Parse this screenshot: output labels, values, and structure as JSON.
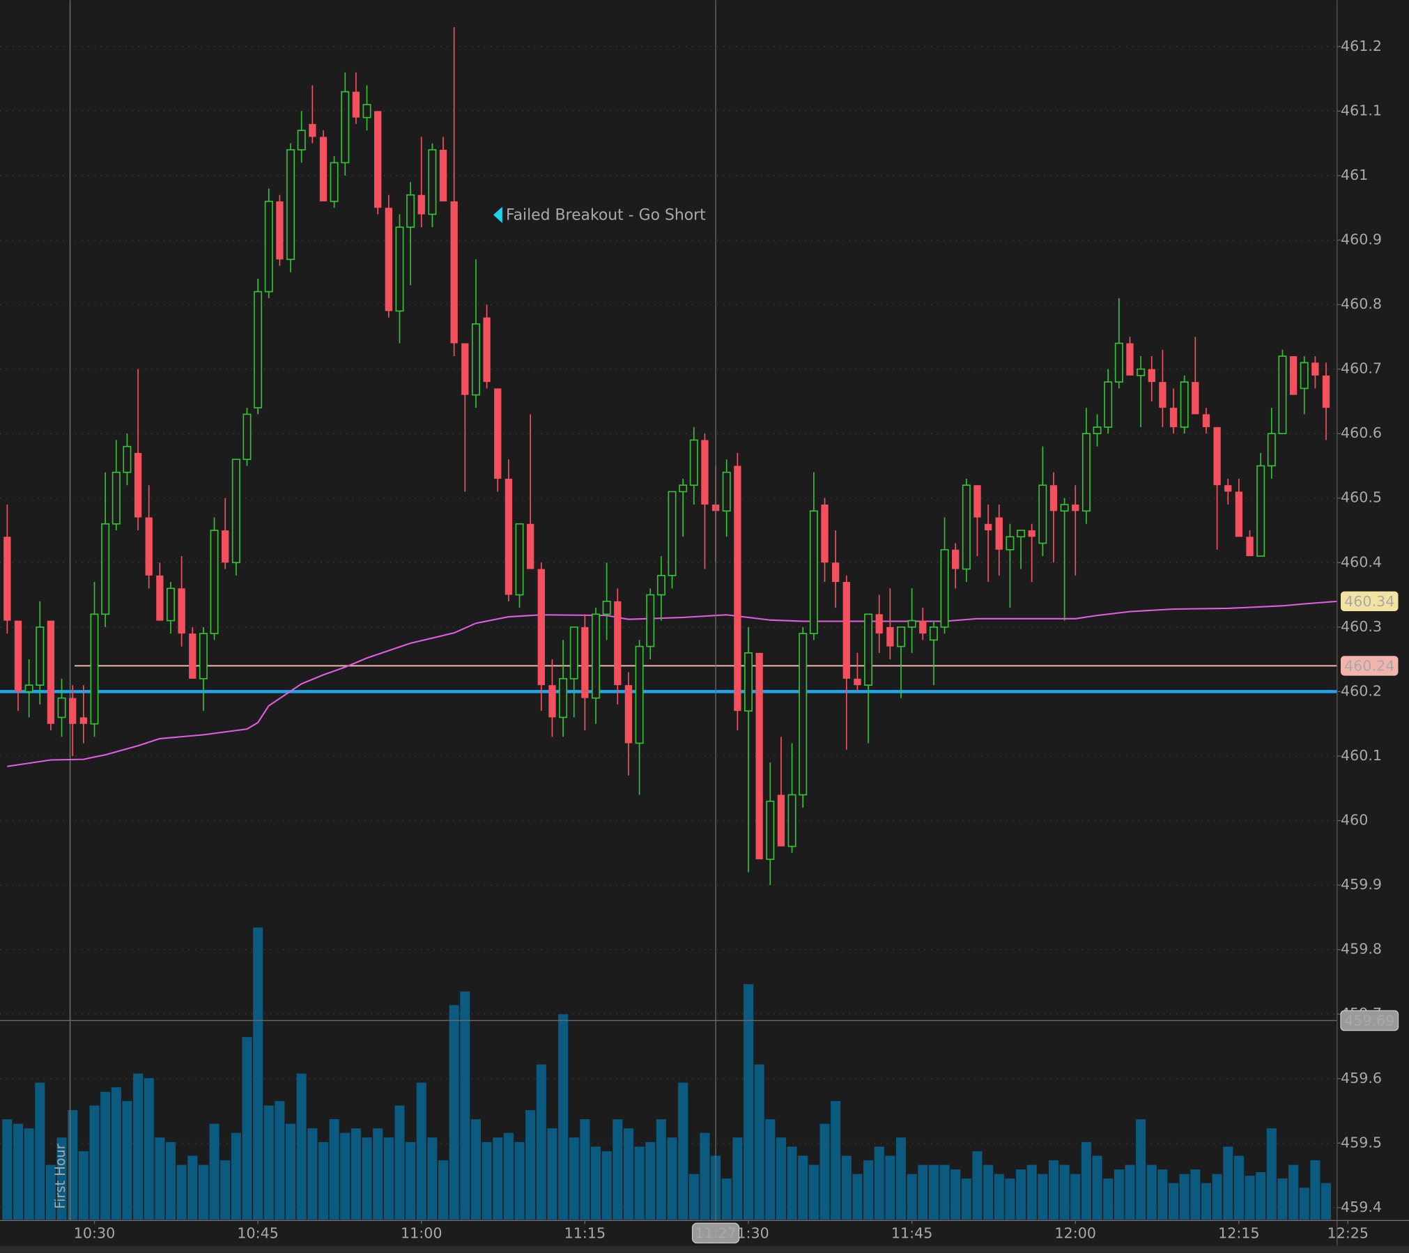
{
  "chart_data": {
    "type": "candlestick",
    "x": [
      "10:22",
      "10:23",
      "10:24",
      "10:25",
      "10:26",
      "10:27",
      "10:28",
      "10:29",
      "10:30",
      "10:31",
      "10:32",
      "10:33",
      "10:34",
      "10:35",
      "10:36",
      "10:37",
      "10:38",
      "10:39",
      "10:40",
      "10:41",
      "10:42",
      "10:43",
      "10:44",
      "10:45",
      "10:46",
      "10:47",
      "10:48",
      "10:49",
      "10:50",
      "10:51",
      "10:52",
      "10:53",
      "10:54",
      "10:55",
      "10:56",
      "10:57",
      "10:58",
      "10:59",
      "11:00",
      "11:01",
      "11:02",
      "11:03",
      "11:04",
      "11:05",
      "11:06",
      "11:07",
      "11:08",
      "11:09",
      "11:10",
      "11:11",
      "11:12",
      "11:13",
      "11:14",
      "11:15",
      "11:16",
      "11:17",
      "11:18",
      "11:19",
      "11:20",
      "11:21",
      "11:22",
      "11:23",
      "11:24",
      "11:25",
      "11:26",
      "11:27",
      "11:28",
      "11:29",
      "11:30",
      "11:31",
      "11:32",
      "11:33",
      "11:34",
      "11:35",
      "11:36",
      "11:37",
      "11:38",
      "11:39",
      "11:40",
      "11:41",
      "11:42",
      "11:43",
      "11:44",
      "11:45",
      "11:46",
      "11:47",
      "11:48",
      "11:49",
      "11:50",
      "11:51",
      "11:52",
      "11:53",
      "11:54",
      "11:55",
      "11:56",
      "11:57",
      "11:58",
      "11:59",
      "12:00",
      "12:01",
      "12:02",
      "12:03",
      "12:04",
      "12:05",
      "12:06",
      "12:07",
      "12:08",
      "12:09",
      "12:10",
      "12:11",
      "12:12",
      "12:13",
      "12:14",
      "12:15",
      "12:16",
      "12:17",
      "12:18",
      "12:19",
      "12:20",
      "12:21",
      "12:22",
      "12:23"
    ],
    "open": [
      460.44,
      460.31,
      460.2,
      460.21,
      460.31,
      460.16,
      460.19,
      460.16,
      460.15,
      460.32,
      460.46,
      460.54,
      460.57,
      460.47,
      460.38,
      460.31,
      460.36,
      460.29,
      460.22,
      460.29,
      460.45,
      460.4,
      460.56,
      460.64,
      460.82,
      460.96,
      460.87,
      461.04,
      461.08,
      461.06,
      460.96,
      461.02,
      461.13,
      461.09,
      461.1,
      460.95,
      460.79,
      460.92,
      460.97,
      460.94,
      461.04,
      460.96,
      460.74,
      460.66,
      460.78,
      460.67,
      460.53,
      460.35,
      460.46,
      460.39,
      460.21,
      460.16,
      460.22,
      460.3,
      460.19,
      460.32,
      460.34,
      460.21,
      460.12,
      460.27,
      460.35,
      460.38,
      460.51,
      460.52,
      460.59,
      460.49,
      460.48,
      460.55,
      460.17,
      460.26,
      459.94,
      460.04,
      459.96,
      460.04,
      460.29,
      460.49,
      460.4,
      460.37,
      460.22,
      460.21,
      460.32,
      460.3,
      460.27,
      460.3,
      460.31,
      460.28,
      460.3,
      460.42,
      460.39,
      460.52,
      460.46,
      460.47,
      460.42,
      460.44,
      460.45,
      460.43,
      460.52,
      460.48,
      460.49,
      460.48,
      460.6,
      460.61,
      460.68,
      460.74,
      460.69,
      460.7,
      460.68,
      460.64,
      460.61,
      460.68,
      460.63,
      460.61,
      460.52,
      460.51,
      460.44,
      460.41,
      460.55,
      460.6,
      460.72,
      460.67,
      460.71,
      460.69
    ],
    "high": [
      460.49,
      460.31,
      460.25,
      460.34,
      460.31,
      460.22,
      460.21,
      460.21,
      460.37,
      460.54,
      460.59,
      460.6,
      460.7,
      460.52,
      460.4,
      460.37,
      460.41,
      460.3,
      460.3,
      460.47,
      460.5,
      460.56,
      460.64,
      460.84,
      460.98,
      460.97,
      461.05,
      461.1,
      461.14,
      461.07,
      461.03,
      461.16,
      461.16,
      461.14,
      461.1,
      460.97,
      460.94,
      460.99,
      461.06,
      461.05,
      461.06,
      461.23,
      460.74,
      460.87,
      460.8,
      460.67,
      460.56,
      460.46,
      460.63,
      460.4,
      460.25,
      460.28,
      460.3,
      460.32,
      460.33,
      460.4,
      460.36,
      460.23,
      460.28,
      460.36,
      460.41,
      460.51,
      460.53,
      460.61,
      460.6,
      460.55,
      460.56,
      460.57,
      460.3,
      460.26,
      460.09,
      460.13,
      460.12,
      460.3,
      460.54,
      460.5,
      460.45,
      460.38,
      460.26,
      460.32,
      460.35,
      460.36,
      460.3,
      460.36,
      460.33,
      460.31,
      460.47,
      460.43,
      460.53,
      460.52,
      460.49,
      460.49,
      460.46,
      460.45,
      460.46,
      460.58,
      460.54,
      460.5,
      460.52,
      460.64,
      460.63,
      460.7,
      460.81,
      460.75,
      460.72,
      460.72,
      460.73,
      460.67,
      460.69,
      460.75,
      460.64,
      460.61,
      460.53,
      460.53,
      460.45,
      460.57,
      460.64,
      460.73,
      460.72,
      460.72,
      460.72,
      460.71
    ],
    "low": [
      460.29,
      460.17,
      460.16,
      460.18,
      460.14,
      460.13,
      460.1,
      460.12,
      460.13,
      460.3,
      460.45,
      460.52,
      460.45,
      460.36,
      460.31,
      460.29,
      460.27,
      460.22,
      460.17,
      460.28,
      460.39,
      460.38,
      460.55,
      460.63,
      460.81,
      460.86,
      460.85,
      461.02,
      461.05,
      460.96,
      460.95,
      461.0,
      461.08,
      461.07,
      460.94,
      460.78,
      460.74,
      460.83,
      460.92,
      460.92,
      460.96,
      460.72,
      460.51,
      460.64,
      460.67,
      460.51,
      460.34,
      460.33,
      460.39,
      460.17,
      460.13,
      460.13,
      460.16,
      460.14,
      460.15,
      460.28,
      460.18,
      460.07,
      460.04,
      460.25,
      460.31,
      460.36,
      460.44,
      460.49,
      460.39,
      460.4,
      460.44,
      460.14,
      459.92,
      459.94,
      459.9,
      459.97,
      459.95,
      460.02,
      460.28,
      460.37,
      460.33,
      460.11,
      460.2,
      460.12,
      460.26,
      460.25,
      460.19,
      460.26,
      460.28,
      460.21,
      460.29,
      460.36,
      460.37,
      460.41,
      460.37,
      460.38,
      460.33,
      460.39,
      460.37,
      460.41,
      460.4,
      460.31,
      460.38,
      460.46,
      460.58,
      460.6,
      460.67,
      460.69,
      460.61,
      460.65,
      460.61,
      460.6,
      460.6,
      460.63,
      460.6,
      460.42,
      460.49,
      460.44,
      460.41,
      460.41,
      460.53,
      460.6,
      460.66,
      460.63,
      460.67,
      460.59
    ],
    "close": [
      460.31,
      460.2,
      460.21,
      460.3,
      460.15,
      460.19,
      460.15,
      460.15,
      460.32,
      460.46,
      460.54,
      460.58,
      460.47,
      460.38,
      460.31,
      460.36,
      460.29,
      460.22,
      460.29,
      460.45,
      460.4,
      460.56,
      460.63,
      460.82,
      460.96,
      460.87,
      461.04,
      461.07,
      461.06,
      460.96,
      461.02,
      461.13,
      461.09,
      461.11,
      460.95,
      460.79,
      460.92,
      460.97,
      460.94,
      461.04,
      460.96,
      460.74,
      460.66,
      460.77,
      460.68,
      460.53,
      460.35,
      460.46,
      460.39,
      460.21,
      460.16,
      460.22,
      460.3,
      460.19,
      460.32,
      460.34,
      460.21,
      460.12,
      460.27,
      460.35,
      460.38,
      460.51,
      460.52,
      460.59,
      460.49,
      460.48,
      460.54,
      460.17,
      460.26,
      459.94,
      460.03,
      459.96,
      460.04,
      460.29,
      460.48,
      460.4,
      460.37,
      460.22,
      460.21,
      460.32,
      460.29,
      460.27,
      460.3,
      460.31,
      460.29,
      460.3,
      460.42,
      460.39,
      460.52,
      460.47,
      460.45,
      460.42,
      460.44,
      460.45,
      460.44,
      460.52,
      460.48,
      460.49,
      460.48,
      460.6,
      460.61,
      460.68,
      460.74,
      460.69,
      460.7,
      460.68,
      460.64,
      460.61,
      460.68,
      460.63,
      460.61,
      460.52,
      460.51,
      460.44,
      460.41,
      460.55,
      460.6,
      460.72,
      460.66,
      460.71,
      460.69,
      460.64
    ],
    "up_color": "#33c233",
    "down_color": "#f4505e",
    "volume": {
      "color": "#0b5a80",
      "values": [
        110,
        105,
        100,
        150,
        60,
        90,
        120,
        75,
        125,
        140,
        145,
        130,
        160,
        155,
        90,
        85,
        60,
        70,
        60,
        105,
        65,
        95,
        200,
        320,
        125,
        130,
        105,
        160,
        100,
        85,
        110,
        95,
        100,
        90,
        100,
        90,
        125,
        85,
        150,
        90,
        65,
        235,
        250,
        110,
        85,
        90,
        95,
        85,
        120,
        170,
        100,
        225,
        90,
        110,
        80,
        75,
        110,
        100,
        80,
        85,
        110,
        90,
        150,
        50,
        95,
        70,
        45,
        90,
        258,
        170,
        110,
        90,
        80,
        70,
        60,
        105,
        130,
        70,
        50,
        65,
        80,
        70,
        90,
        50,
        60,
        60,
        60,
        55,
        45,
        75,
        60,
        50,
        45,
        55,
        60,
        50,
        65,
        60,
        50,
        85,
        70,
        45,
        55,
        60,
        110,
        60,
        55,
        40,
        50,
        55,
        40,
        50,
        80,
        70,
        48,
        52,
        100,
        45,
        60,
        35,
        65,
        40
      ]
    },
    "vwap": {
      "color": "#e35ee3",
      "x": [
        "10:22",
        "10:26",
        "10:29",
        "10:31",
        "10:34",
        "10:36",
        "10:40",
        "10:44",
        "10:45",
        "10:46",
        "10:49",
        "10:51",
        "10:53",
        "10:55",
        "10:59",
        "11:03",
        "11:05",
        "11:08",
        "11:11",
        "11:17",
        "11:19",
        "11:24",
        "11:28",
        "11:32",
        "11:35",
        "11:48",
        "11:51",
        "12:00",
        "12:02",
        "12:05",
        "12:09",
        "12:14",
        "12:19",
        "12:21",
        "12:24"
      ],
      "values": [
        460.084,
        460.094,
        460.095,
        460.102,
        460.116,
        460.127,
        460.133,
        460.142,
        460.152,
        460.178,
        460.212,
        460.226,
        460.238,
        460.252,
        460.275,
        460.291,
        460.306,
        460.316,
        460.319,
        460.318,
        460.312,
        460.315,
        460.319,
        460.311,
        460.309,
        460.309,
        460.313,
        460.313,
        460.318,
        460.324,
        460.328,
        460.329,
        460.333,
        460.336,
        460.34
      ]
    },
    "levels": [
      {
        "value": 460.2,
        "color": "#1ea7ee"
      },
      {
        "value": 460.24,
        "color": "#f2b5ac",
        "tag": true
      }
    ],
    "crosshair": {
      "x": "11:27",
      "y": 459.69
    },
    "annotation": "Failed Breakout - Go Short",
    "marker_label": "First Hour",
    "xlim": [
      "10:21",
      "12:25"
    ],
    "xticks": [
      "10:30",
      "10:45",
      "11:00",
      "11:15",
      "11:30",
      "11:45",
      "12:00",
      "12:15",
      "12:25"
    ],
    "ylim": [
      459.38,
      461.272
    ],
    "yticks": [
      459.4,
      459.5,
      459.6,
      459.7,
      459.8,
      459.9,
      460,
      460.1,
      460.2,
      460.3,
      460.4,
      460.5,
      460.6,
      460.7,
      460.8,
      460.9,
      461,
      461.1,
      461.2
    ],
    "grid": true
  }
}
